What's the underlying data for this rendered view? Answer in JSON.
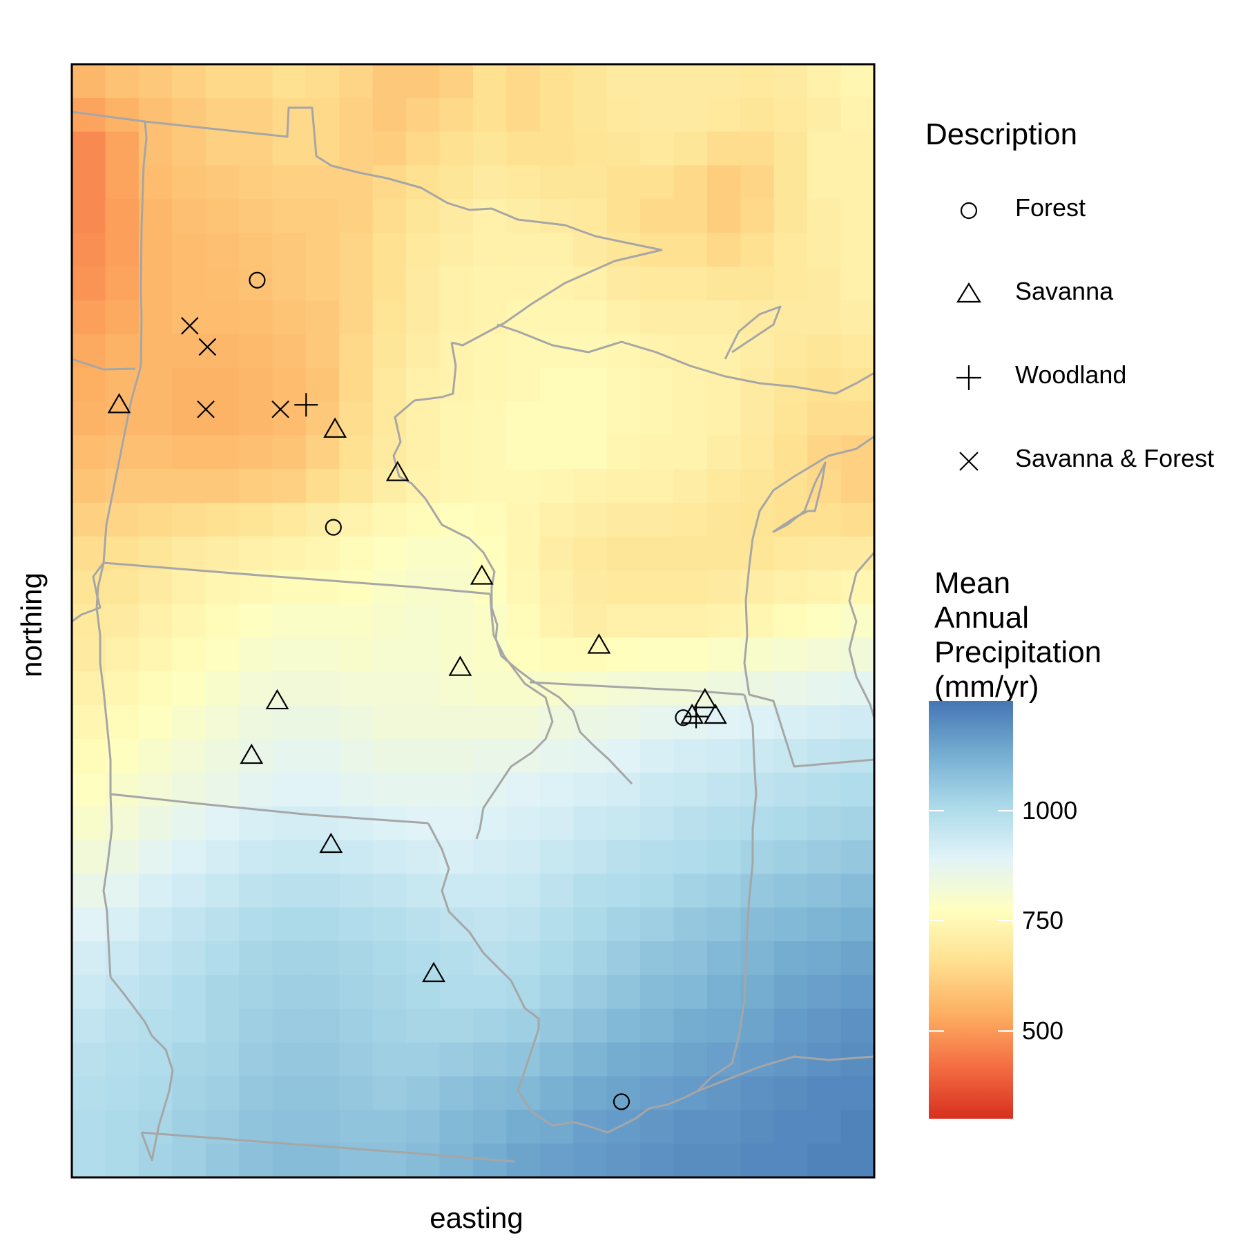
{
  "chart_data": {
    "type": "heatmap",
    "title": "",
    "xlabel": "easting",
    "ylabel": "northing",
    "fill_scale": {
      "title_lines": [
        "Mean",
        "Annual",
        "Precipitation",
        "(mm/yr)"
      ],
      "limits": [
        300,
        1250
      ],
      "breaks": [
        500,
        750,
        1000
      ],
      "break_labels": [
        "500",
        "750",
        "1000"
      ],
      "palette": "RdYlBu",
      "colors": [
        "#d7301f",
        "#f46d43",
        "#fdae61",
        "#fee090",
        "#ffffbf",
        "#e0f3f8",
        "#abd9e9",
        "#74add1",
        "#4575b4"
      ]
    },
    "raster": {
      "ncol": 24,
      "nrow": 33,
      "values": [
        [
          560,
          585,
          600,
          620,
          640,
          640,
          660,
          650,
          630,
          600,
          600,
          620,
          660,
          640,
          660,
          680,
          700,
          700,
          700,
          700,
          690,
          700,
          720,
          740
        ],
        [
          520,
          550,
          580,
          600,
          620,
          620,
          640,
          640,
          620,
          600,
          620,
          640,
          660,
          640,
          660,
          680,
          690,
          700,
          700,
          690,
          680,
          690,
          710,
          730
        ],
        [
          470,
          520,
          580,
          600,
          620,
          620,
          640,
          640,
          620,
          610,
          640,
          660,
          680,
          660,
          660,
          670,
          680,
          690,
          680,
          650,
          650,
          680,
          720,
          720
        ],
        [
          470,
          520,
          570,
          590,
          600,
          610,
          620,
          620,
          620,
          640,
          660,
          680,
          700,
          690,
          680,
          680,
          660,
          660,
          640,
          610,
          630,
          680,
          720,
          720
        ],
        [
          470,
          510,
          560,
          580,
          590,
          600,
          610,
          610,
          620,
          650,
          680,
          700,
          720,
          710,
          700,
          690,
          660,
          640,
          640,
          610,
          640,
          680,
          710,
          720
        ],
        [
          480,
          510,
          560,
          570,
          580,
          590,
          600,
          610,
          630,
          660,
          690,
          710,
          720,
          720,
          720,
          700,
          680,
          660,
          660,
          640,
          660,
          690,
          710,
          720
        ],
        [
          490,
          520,
          560,
          570,
          575,
          585,
          600,
          610,
          630,
          660,
          700,
          720,
          730,
          730,
          730,
          720,
          700,
          690,
          690,
          680,
          680,
          690,
          700,
          720
        ],
        [
          510,
          530,
          560,
          570,
          570,
          575,
          590,
          600,
          630,
          670,
          700,
          720,
          730,
          740,
          740,
          740,
          720,
          710,
          710,
          710,
          700,
          700,
          700,
          710
        ],
        [
          530,
          550,
          560,
          560,
          560,
          565,
          580,
          600,
          640,
          680,
          710,
          730,
          740,
          750,
          750,
          750,
          740,
          730,
          720,
          720,
          710,
          690,
          680,
          690
        ],
        [
          540,
          560,
          560,
          550,
          550,
          560,
          570,
          590,
          640,
          690,
          720,
          730,
          740,
          750,
          760,
          760,
          750,
          740,
          730,
          720,
          700,
          680,
          660,
          670
        ],
        [
          550,
          560,
          560,
          550,
          550,
          560,
          570,
          600,
          650,
          690,
          720,
          740,
          750,
          760,
          760,
          760,
          750,
          740,
          730,
          720,
          700,
          670,
          650,
          650
        ],
        [
          570,
          580,
          580,
          570,
          570,
          580,
          590,
          620,
          660,
          700,
          720,
          740,
          750,
          760,
          760,
          760,
          740,
          730,
          730,
          710,
          690,
          660,
          630,
          620
        ],
        [
          590,
          600,
          600,
          600,
          600,
          610,
          620,
          650,
          680,
          710,
          730,
          740,
          750,
          750,
          740,
          730,
          720,
          720,
          710,
          690,
          680,
          660,
          640,
          620
        ],
        [
          620,
          630,
          640,
          650,
          660,
          670,
          690,
          710,
          730,
          750,
          760,
          770,
          760,
          740,
          720,
          710,
          700,
          700,
          690,
          680,
          670,
          660,
          660,
          650
        ],
        [
          650,
          660,
          680,
          700,
          710,
          720,
          730,
          740,
          760,
          780,
          790,
          790,
          770,
          740,
          710,
          690,
          680,
          680,
          680,
          680,
          680,
          690,
          700,
          700
        ],
        [
          670,
          680,
          700,
          720,
          740,
          750,
          760,
          760,
          770,
          790,
          800,
          800,
          780,
          750,
          720,
          700,
          690,
          690,
          690,
          700,
          710,
          720,
          730,
          740
        ],
        [
          690,
          700,
          720,
          740,
          760,
          780,
          790,
          790,
          790,
          800,
          810,
          800,
          790,
          760,
          730,
          710,
          720,
          720,
          720,
          730,
          740,
          760,
          780,
          790
        ],
        [
          700,
          720,
          740,
          760,
          780,
          800,
          810,
          810,
          800,
          810,
          810,
          800,
          790,
          770,
          760,
          760,
          770,
          780,
          780,
          790,
          800,
          810,
          820,
          830
        ],
        [
          720,
          740,
          760,
          780,
          800,
          820,
          830,
          830,
          820,
          820,
          820,
          810,
          800,
          800,
          800,
          810,
          820,
          830,
          830,
          840,
          850,
          860,
          870,
          880
        ],
        [
          740,
          760,
          780,
          800,
          820,
          840,
          850,
          850,
          840,
          830,
          830,
          830,
          830,
          830,
          840,
          850,
          860,
          870,
          880,
          890,
          900,
          910,
          920,
          930
        ],
        [
          760,
          780,
          800,
          820,
          840,
          860,
          870,
          870,
          860,
          850,
          850,
          850,
          860,
          860,
          870,
          880,
          890,
          910,
          920,
          930,
          940,
          950,
          960,
          970
        ],
        [
          780,
          800,
          820,
          840,
          860,
          880,
          890,
          890,
          880,
          870,
          870,
          870,
          880,
          890,
          900,
          910,
          920,
          940,
          950,
          960,
          970,
          980,
          990,
          1000
        ],
        [
          800,
          820,
          850,
          870,
          890,
          910,
          920,
          920,
          910,
          900,
          890,
          890,
          900,
          910,
          920,
          940,
          950,
          960,
          980,
          990,
          1000,
          1010,
          1020,
          1030
        ],
        [
          830,
          850,
          880,
          900,
          920,
          940,
          950,
          950,
          940,
          930,
          920,
          910,
          920,
          930,
          950,
          960,
          980,
          990,
          1000,
          1010,
          1030,
          1040,
          1050,
          1060
        ],
        [
          860,
          880,
          910,
          930,
          950,
          970,
          980,
          980,
          970,
          960,
          950,
          940,
          940,
          950,
          970,
          990,
          1000,
          1010,
          1030,
          1040,
          1060,
          1070,
          1080,
          1090
        ],
        [
          890,
          910,
          940,
          960,
          980,
          1000,
          1010,
          1010,
          1000,
          990,
          980,
          970,
          960,
          970,
          990,
          1010,
          1030,
          1040,
          1060,
          1070,
          1090,
          1100,
          1110,
          1120
        ],
        [
          920,
          940,
          960,
          980,
          1000,
          1020,
          1030,
          1030,
          1020,
          1010,
          1000,
          990,
          980,
          990,
          1010,
          1030,
          1050,
          1070,
          1080,
          1100,
          1110,
          1130,
          1140,
          1150
        ],
        [
          940,
          960,
          980,
          1000,
          1020,
          1030,
          1040,
          1040,
          1030,
          1020,
          1010,
          1000,
          1000,
          1010,
          1030,
          1050,
          1070,
          1090,
          1100,
          1120,
          1130,
          1150,
          1160,
          1170
        ],
        [
          960,
          980,
          990,
          1000,
          1020,
          1040,
          1050,
          1050,
          1040,
          1030,
          1020,
          1020,
          1030,
          1040,
          1060,
          1080,
          1100,
          1110,
          1130,
          1140,
          1150,
          1170,
          1180,
          1190
        ],
        [
          980,
          990,
          1000,
          1020,
          1030,
          1050,
          1060,
          1060,
          1050,
          1040,
          1040,
          1050,
          1060,
          1070,
          1090,
          1110,
          1130,
          1140,
          1150,
          1160,
          1170,
          1180,
          1190,
          1200
        ],
        [
          990,
          1000,
          1010,
          1030,
          1040,
          1060,
          1070,
          1070,
          1060,
          1050,
          1060,
          1080,
          1090,
          1100,
          1120,
          1140,
          1150,
          1160,
          1170,
          1180,
          1190,
          1200,
          1210,
          1210
        ],
        [
          1000,
          1010,
          1020,
          1040,
          1050,
          1070,
          1080,
          1080,
          1070,
          1070,
          1080,
          1100,
          1110,
          1130,
          1140,
          1160,
          1170,
          1180,
          1190,
          1190,
          1200,
          1210,
          1210,
          1220
        ],
        [
          1000,
          1010,
          1030,
          1040,
          1060,
          1080,
          1090,
          1090,
          1080,
          1080,
          1090,
          1110,
          1130,
          1150,
          1160,
          1170,
          1180,
          1190,
          1200,
          1200,
          1210,
          1210,
          1220,
          1220
        ]
      ]
    },
    "legend": {
      "title": "Description",
      "items": [
        {
          "label": "Forest",
          "shape": "circle-icon"
        },
        {
          "label": "Savanna",
          "shape": "triangle-icon"
        },
        {
          "label": "Woodland",
          "shape": "plus-icon"
        },
        {
          "label": "Savanna & Forest",
          "shape": "cross-icon"
        }
      ]
    },
    "sites": [
      {
        "type": "Forest",
        "easting": 0.231,
        "northing": 0.806
      },
      {
        "type": "Forest",
        "easting": 0.326,
        "northing": 0.584
      },
      {
        "type": "Forest",
        "easting": 0.762,
        "northing": 0.413
      },
      {
        "type": "Forest",
        "easting": 0.685,
        "northing": 0.068
      },
      {
        "type": "Savanna",
        "easting": 0.059,
        "northing": 0.694
      },
      {
        "type": "Savanna",
        "easting": 0.328,
        "northing": 0.672
      },
      {
        "type": "Savanna",
        "easting": 0.406,
        "northing": 0.633
      },
      {
        "type": "Savanna",
        "easting": 0.511,
        "northing": 0.54
      },
      {
        "type": "Savanna",
        "easting": 0.657,
        "northing": 0.478
      },
      {
        "type": "Savanna",
        "easting": 0.484,
        "northing": 0.458
      },
      {
        "type": "Savanna",
        "easting": 0.256,
        "northing": 0.428
      },
      {
        "type": "Savanna",
        "easting": 0.224,
        "northing": 0.379
      },
      {
        "type": "Savanna",
        "easting": 0.789,
        "northing": 0.429
      },
      {
        "type": "Savanna",
        "easting": 0.802,
        "northing": 0.415
      },
      {
        "type": "Savanna",
        "easting": 0.773,
        "northing": 0.415
      },
      {
        "type": "Savanna",
        "easting": 0.323,
        "northing": 0.299
      },
      {
        "type": "Savanna",
        "easting": 0.451,
        "northing": 0.183
      },
      {
        "type": "Woodland",
        "easting": 0.292,
        "northing": 0.694
      },
      {
        "type": "Woodland",
        "easting": 0.778,
        "northing": 0.414
      },
      {
        "type": "Savanna & Forest",
        "easting": 0.147,
        "northing": 0.765
      },
      {
        "type": "Savanna & Forest",
        "easting": 0.169,
        "northing": 0.746
      },
      {
        "type": "Savanna & Forest",
        "easting": 0.167,
        "northing": 0.69
      },
      {
        "type": "Savanna & Forest",
        "easting": 0.26,
        "northing": 0.69
      }
    ],
    "boundary_color": "#a6a6a6"
  }
}
